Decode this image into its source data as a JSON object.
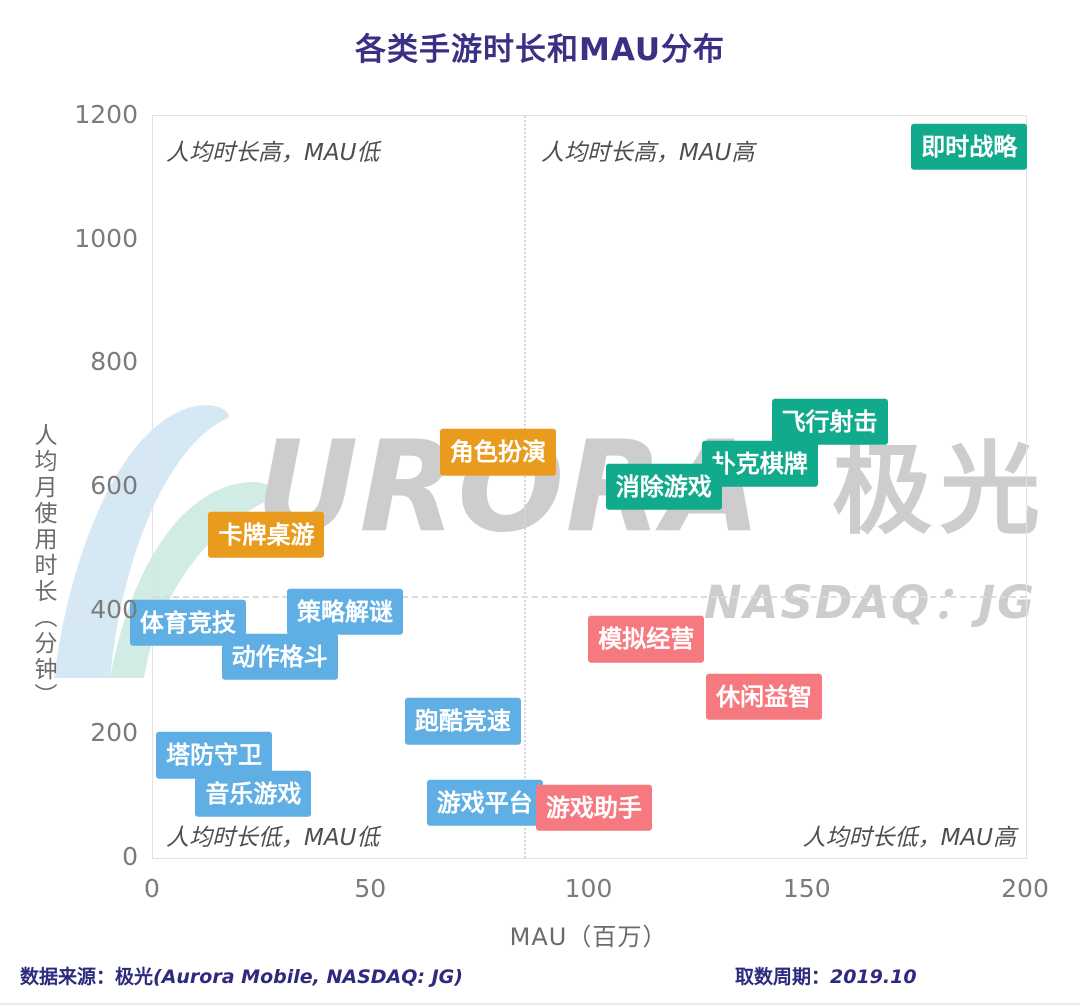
{
  "title": "各类手游时长和MAU分布",
  "watermark": {
    "brand_latin": "URORA",
    "brand_cn": "极光",
    "ticker": "NASDAQ：JG",
    "logo": "aurora-swoosh"
  },
  "footer": {
    "source_prefix": "数据来源：极光",
    "source_latin": "(Aurora Mobile, NASDAQ: JG)",
    "period_label": "取数周期：",
    "period_value": "2019.10"
  },
  "colors": {
    "teal": "#12AA8C",
    "orange": "#E99B1E",
    "blue": "#5FAFE4",
    "pink": "#F5797F",
    "title_text": "#3A3185",
    "footer_text": "#2E2A7D",
    "axis_text": "#7B7B7B",
    "axis_label_text": "#6B6B6B",
    "quadrant_text": "#4E4E4E",
    "watermark_text": "#CDCDCD",
    "plot_border": "#E2E2E2",
    "divider_line": "#D6D6D6"
  },
  "chart_data": {
    "type": "scatter",
    "title": "各类手游时长和MAU分布",
    "xlabel": "MAU（百万）",
    "ylabel": "人均月使用时长（分钟）",
    "xlim": [
      0,
      200
    ],
    "ylim": [
      0,
      1200
    ],
    "x_ticks": [
      0,
      50,
      100,
      150,
      200
    ],
    "y_ticks": [
      0,
      200,
      400,
      600,
      800,
      1000,
      1200
    ],
    "grid": false,
    "legend": "none",
    "quadrant_divider": {
      "x": 85,
      "y": 424,
      "style": "dotted"
    },
    "quadrant_labels": {
      "top_left": "人均时长高，MAU低",
      "top_right": "人均时长高，MAU高",
      "bottom_left": "人均时长低，MAU低",
      "bottom_right": "人均时长低，MAU高"
    },
    "points": [
      {
        "label": "即时战略",
        "x": 187,
        "y": 1150,
        "color": "teal"
      },
      {
        "label": "飞行射击",
        "x": 155,
        "y": 705,
        "color": "teal"
      },
      {
        "label": "扑克棋牌",
        "x": 139,
        "y": 638,
        "color": "teal"
      },
      {
        "label": "角色扮演",
        "x": 79,
        "y": 656,
        "color": "orange"
      },
      {
        "label": "消除游戏",
        "x": 117,
        "y": 600,
        "color": "teal"
      },
      {
        "label": "卡牌桌游",
        "x": 26,
        "y": 523,
        "color": "orange"
      },
      {
        "label": "策略解谜",
        "x": 44,
        "y": 398,
        "color": "blue"
      },
      {
        "label": "体育竞技",
        "x": 8,
        "y": 380,
        "color": "blue"
      },
      {
        "label": "模拟经营",
        "x": 113,
        "y": 354,
        "color": "pink"
      },
      {
        "label": "动作格斗",
        "x": 29,
        "y": 325,
        "color": "blue"
      },
      {
        "label": "休闲益智",
        "x": 140,
        "y": 261,
        "color": "pink"
      },
      {
        "label": "跑酷竞速",
        "x": 71,
        "y": 221,
        "color": "blue"
      },
      {
        "label": "塔防守卫",
        "x": 14,
        "y": 166,
        "color": "blue"
      },
      {
        "label": "音乐游戏",
        "x": 23,
        "y": 104,
        "color": "blue"
      },
      {
        "label": "游戏平台",
        "x": 76,
        "y": 89,
        "color": "blue"
      },
      {
        "label": "游戏助手",
        "x": 101,
        "y": 81,
        "color": "pink"
      }
    ]
  }
}
